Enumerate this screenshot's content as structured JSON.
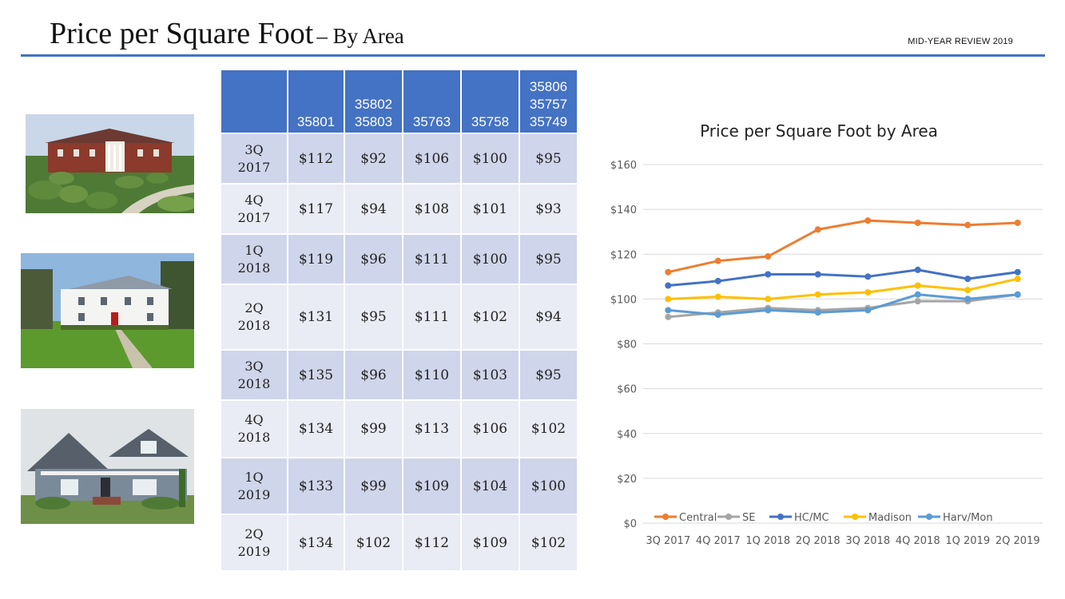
{
  "header": {
    "title": "Price per Square Foot",
    "subtitle": "– By Area",
    "review_label": "MID-YEAR REVIEW 2019",
    "accent_color": "#4472c4"
  },
  "photos": [
    {
      "name": "brick-mansion-photo"
    },
    {
      "name": "white-colonial-house-photo"
    },
    {
      "name": "gray-craftsman-house-photo"
    }
  ],
  "table": {
    "columns": [
      "",
      "35801",
      "35802\n35803",
      "35763",
      "35758",
      "35806\n35757\n35749"
    ],
    "rows": [
      {
        "quarter": "3Q\n2017",
        "values": [
          "$112",
          "$92",
          "$106",
          "$100",
          "$95"
        ]
      },
      {
        "quarter": "4Q\n2017",
        "values": [
          "$117",
          "$94",
          "$108",
          "$101",
          "$93"
        ]
      },
      {
        "quarter": "1Q\n2018",
        "values": [
          "$119",
          "$96",
          "$111",
          "$100",
          "$95"
        ]
      },
      {
        "quarter": "2Q\n2018",
        "values": [
          "$131",
          "$95",
          "$111",
          "$102",
          "$94"
        ]
      },
      {
        "quarter": "3Q\n2018",
        "values": [
          "$135",
          "$96",
          "$110",
          "$103",
          "$95"
        ]
      },
      {
        "quarter": "4Q\n2018",
        "values": [
          "$134",
          "$99",
          "$113",
          "$106",
          "$102"
        ]
      },
      {
        "quarter": "1Q\n2019",
        "values": [
          "$133",
          "$99",
          "$109",
          "$104",
          "$100"
        ]
      },
      {
        "quarter": "2Q\n2019",
        "values": [
          "$134",
          "$102",
          "$112",
          "$109",
          "$102"
        ]
      }
    ]
  },
  "chart_data": {
    "type": "line",
    "title": "Price per Square Foot by Area",
    "xlabel": "",
    "ylabel": "",
    "categories": [
      "3Q 2017",
      "4Q 2017",
      "1Q 2018",
      "2Q 2018",
      "3Q 2018",
      "4Q 2018",
      "1Q 2019",
      "2Q 2019"
    ],
    "ylim": [
      0,
      160
    ],
    "yticks": [
      0,
      20,
      40,
      60,
      80,
      100,
      120,
      140,
      160
    ],
    "ytick_labels": [
      "$0",
      "$20",
      "$40",
      "$60",
      "$80",
      "$100",
      "$120",
      "$140",
      "$160"
    ],
    "grid": true,
    "legend": "bottom",
    "series": [
      {
        "name": "Central",
        "color": "#ed7d31",
        "values": [
          112,
          117,
          119,
          131,
          135,
          134,
          133,
          134
        ]
      },
      {
        "name": "SE",
        "color": "#a5a5a5",
        "values": [
          92,
          94,
          96,
          95,
          96,
          99,
          99,
          102
        ]
      },
      {
        "name": "HC/MC",
        "color": "#4472c4",
        "values": [
          106,
          108,
          111,
          111,
          110,
          113,
          109,
          112
        ]
      },
      {
        "name": "Madison",
        "color": "#ffc000",
        "values": [
          100,
          101,
          100,
          102,
          103,
          106,
          104,
          109
        ]
      },
      {
        "name": "Harv/Mon",
        "color": "#5b9bd5",
        "values": [
          95,
          93,
          95,
          94,
          95,
          102,
          100,
          102
        ]
      }
    ]
  }
}
